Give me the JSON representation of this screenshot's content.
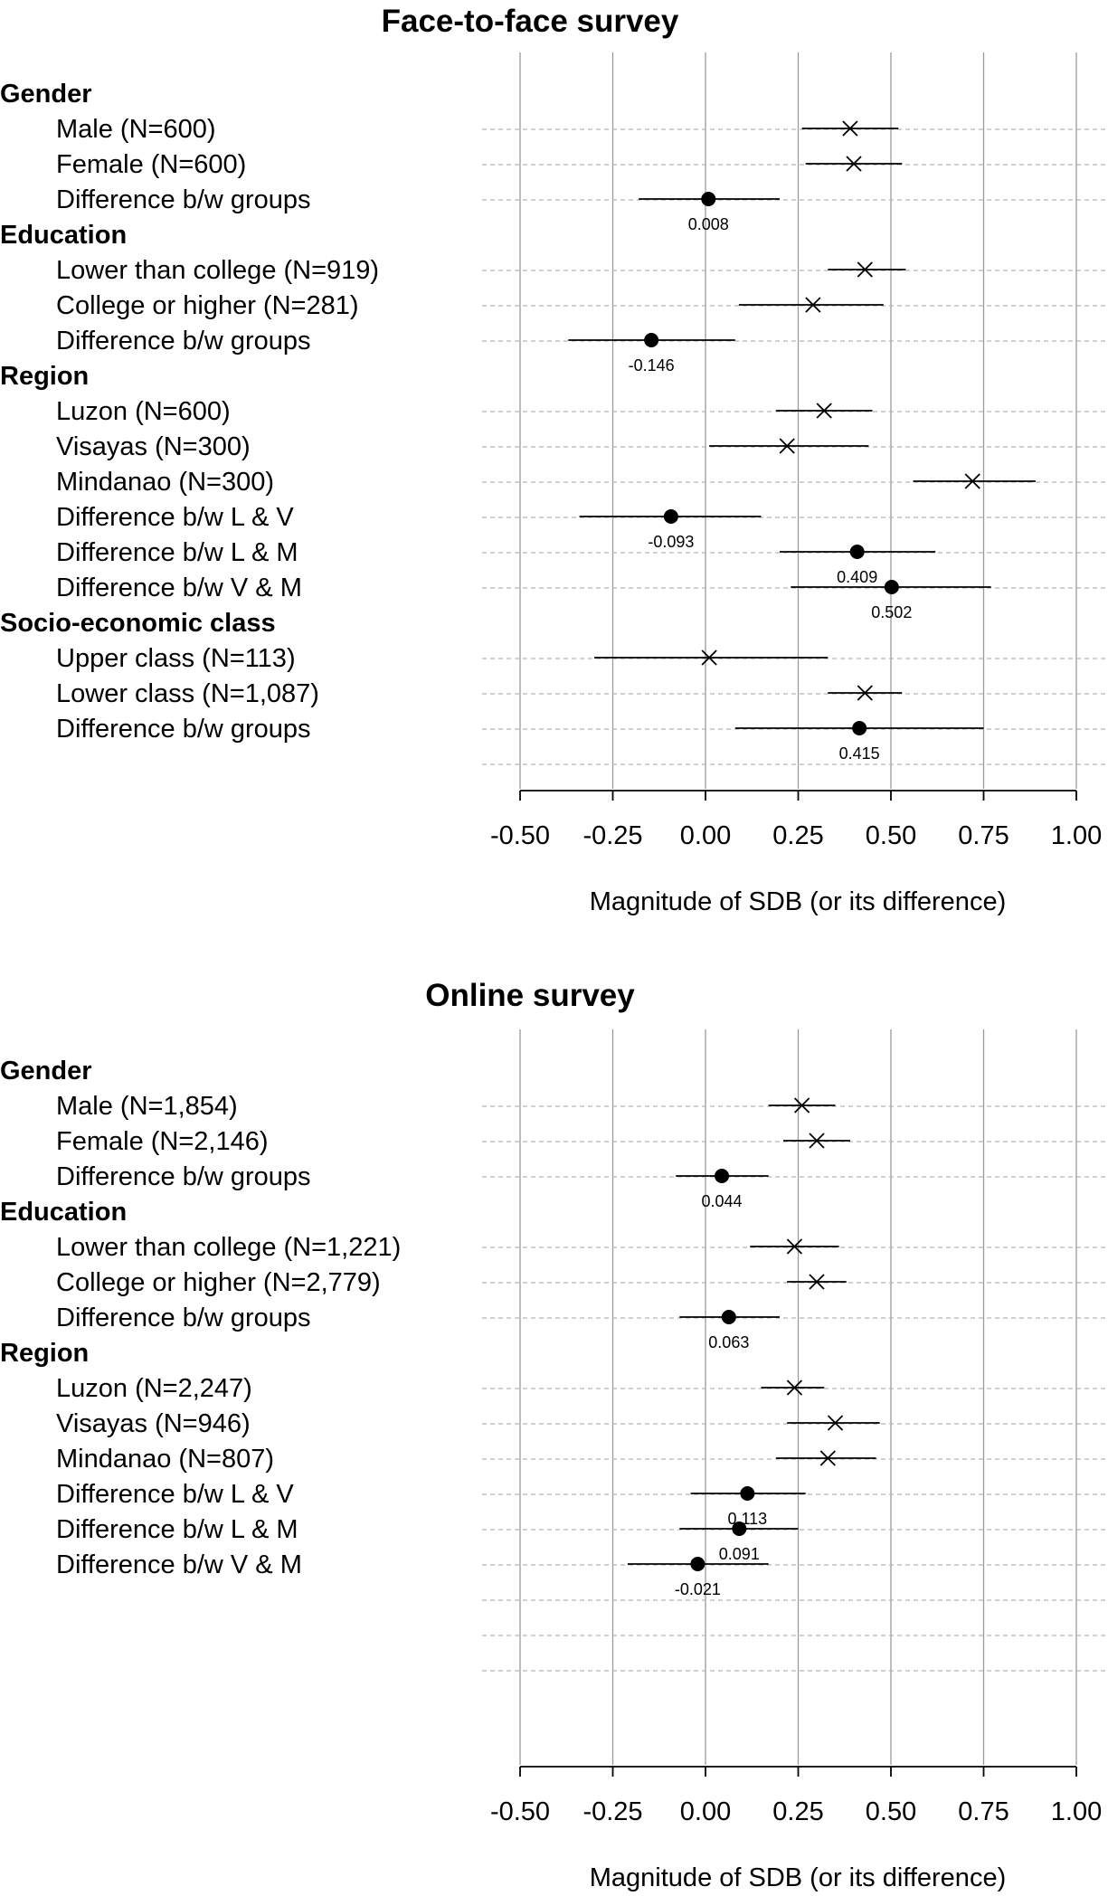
{
  "chart_data": [
    {
      "type": "forest",
      "title": "Face-to-face survey",
      "xlabel": "Magnitude of SDB (or its difference)",
      "xlim": [
        -0.5,
        1.0
      ],
      "xticks": [
        "-0.50",
        "-0.25",
        "0.00",
        "0.25",
        "0.50",
        "0.75",
        "1.00"
      ],
      "xtick_values": [
        -0.5,
        -0.25,
        0.0,
        0.25,
        0.5,
        0.75,
        1.0
      ],
      "grid": true,
      "empty_rows": 1,
      "rows": [
        {
          "kind": "header",
          "label": "Gender"
        },
        {
          "kind": "estimate",
          "label": "Male (N=600)",
          "value": 0.39,
          "low": 0.26,
          "high": 0.52
        },
        {
          "kind": "estimate",
          "label": "Female (N=600)",
          "value": 0.4,
          "low": 0.27,
          "high": 0.53
        },
        {
          "kind": "difference",
          "label": "Difference b/w groups",
          "value": 0.008,
          "low": -0.18,
          "high": 0.2,
          "value_label": "0.008"
        },
        {
          "kind": "header",
          "label": "Education"
        },
        {
          "kind": "estimate",
          "label": "Lower than college (N=919)",
          "value": 0.43,
          "low": 0.33,
          "high": 0.54
        },
        {
          "kind": "estimate",
          "label": "College or higher (N=281)",
          "value": 0.29,
          "low": 0.09,
          "high": 0.48
        },
        {
          "kind": "difference",
          "label": "Difference b/w groups",
          "value": -0.146,
          "low": -0.37,
          "high": 0.08,
          "value_label": "-0.146"
        },
        {
          "kind": "header",
          "label": "Region"
        },
        {
          "kind": "estimate",
          "label": "Luzon (N=600)",
          "value": 0.32,
          "low": 0.19,
          "high": 0.45
        },
        {
          "kind": "estimate",
          "label": "Visayas (N=300)",
          "value": 0.22,
          "low": 0.01,
          "high": 0.44
        },
        {
          "kind": "estimate",
          "label": "Mindanao (N=300)",
          "value": 0.72,
          "low": 0.56,
          "high": 0.89
        },
        {
          "kind": "difference",
          "label": "Difference b/w L & V",
          "value": -0.093,
          "low": -0.34,
          "high": 0.15,
          "value_label": "-0.093"
        },
        {
          "kind": "difference",
          "label": "Difference b/w L & M",
          "value": 0.409,
          "low": 0.2,
          "high": 0.62,
          "value_label": "0.409"
        },
        {
          "kind": "difference",
          "label": "Difference b/w V & M",
          "value": 0.502,
          "low": 0.23,
          "high": 0.77,
          "value_label": "0.502"
        },
        {
          "kind": "header",
          "label": "Socio-economic class"
        },
        {
          "kind": "estimate",
          "label": "Upper class (N=113)",
          "value": 0.01,
          "low": -0.3,
          "high": 0.33
        },
        {
          "kind": "estimate",
          "label": "Lower class (N=1,087)",
          "value": 0.43,
          "low": 0.33,
          "high": 0.53
        },
        {
          "kind": "difference",
          "label": "Difference b/w groups",
          "value": 0.415,
          "low": 0.08,
          "high": 0.75,
          "value_label": "0.415"
        }
      ]
    },
    {
      "type": "forest",
      "title": "Online survey",
      "xlabel": "Magnitude of SDB (or its difference)",
      "xlim": [
        -0.5,
        1.0
      ],
      "xticks": [
        "-0.50",
        "-0.25",
        "0.00",
        "0.25",
        "0.50",
        "0.75",
        "1.00"
      ],
      "xtick_values": [
        -0.5,
        -0.25,
        0.0,
        0.25,
        0.5,
        0.75,
        1.0
      ],
      "grid": true,
      "empty_rows": 3,
      "rows": [
        {
          "kind": "header",
          "label": "Gender"
        },
        {
          "kind": "estimate",
          "label": "Male (N=1,854)",
          "value": 0.26,
          "low": 0.17,
          "high": 0.35
        },
        {
          "kind": "estimate",
          "label": "Female (N=2,146)",
          "value": 0.3,
          "low": 0.21,
          "high": 0.39
        },
        {
          "kind": "difference",
          "label": "Difference b/w groups",
          "value": 0.044,
          "low": -0.08,
          "high": 0.17,
          "value_label": "0.044"
        },
        {
          "kind": "header",
          "label": "Education"
        },
        {
          "kind": "estimate",
          "label": "Lower than college (N=1,221)",
          "value": 0.24,
          "low": 0.12,
          "high": 0.36
        },
        {
          "kind": "estimate",
          "label": "College or higher (N=2,779)",
          "value": 0.3,
          "low": 0.22,
          "high": 0.38
        },
        {
          "kind": "difference",
          "label": "Difference b/w groups",
          "value": 0.063,
          "low": -0.07,
          "high": 0.2,
          "value_label": "0.063"
        },
        {
          "kind": "header",
          "label": "Region"
        },
        {
          "kind": "estimate",
          "label": "Luzon (N=2,247)",
          "value": 0.24,
          "low": 0.15,
          "high": 0.32
        },
        {
          "kind": "estimate",
          "label": "Visayas (N=946)",
          "value": 0.35,
          "low": 0.22,
          "high": 0.47
        },
        {
          "kind": "estimate",
          "label": "Mindanao (N=807)",
          "value": 0.33,
          "low": 0.19,
          "high": 0.46
        },
        {
          "kind": "difference",
          "label": "Difference b/w L & V",
          "value": 0.113,
          "low": -0.04,
          "high": 0.27,
          "value_label": "0.113"
        },
        {
          "kind": "difference",
          "label": "Difference b/w L & M",
          "value": 0.091,
          "low": -0.07,
          "high": 0.25,
          "value_label": "0.091"
        },
        {
          "kind": "difference",
          "label": "Difference b/w V & M",
          "value": -0.021,
          "low": -0.21,
          "high": 0.17,
          "value_label": "-0.021"
        }
      ]
    }
  ],
  "colors": {
    "ink": "#000000",
    "grid": "#9a9a9a",
    "row_line": "#b5b5b5",
    "background": "#ffffff"
  }
}
